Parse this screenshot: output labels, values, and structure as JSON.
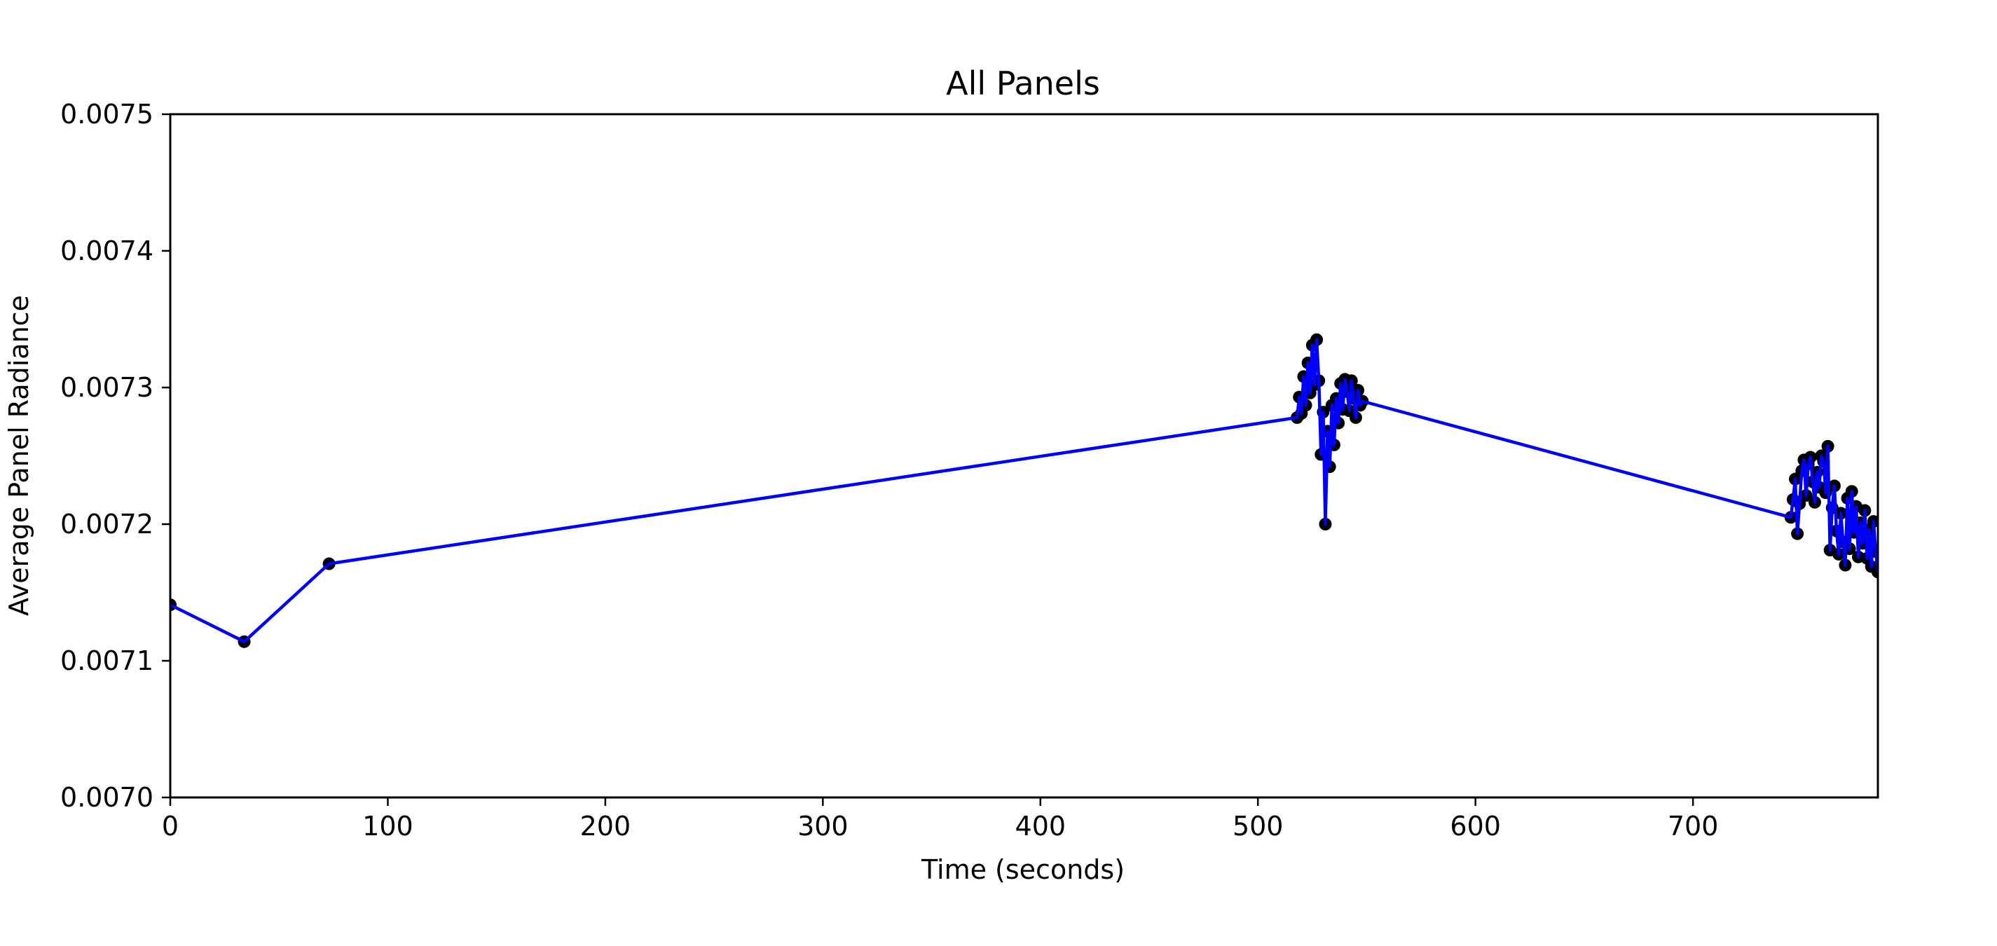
{
  "chart_data": {
    "type": "line",
    "title": "All Panels",
    "xlabel": "Time (seconds)",
    "ylabel": "Average Panel Radiance",
    "xlim": [
      0,
      785
    ],
    "ylim": [
      0.007,
      0.0075
    ],
    "xticks": [
      0,
      100,
      200,
      300,
      400,
      500,
      600,
      700
    ],
    "xtick_labels": [
      "0",
      "100",
      "200",
      "300",
      "400",
      "500",
      "600",
      "700"
    ],
    "yticks": [
      0.007,
      0.0071,
      0.0072,
      0.0073,
      0.0074,
      0.0075
    ],
    "ytick_labels": [
      "0.0070",
      "0.0071",
      "0.0072",
      "0.0073",
      "0.0074",
      "0.0075"
    ],
    "grid": false,
    "line_color": "#0000ff",
    "marker_color": "#000000",
    "series": [
      {
        "x": [
          0,
          34,
          73,
          518,
          519,
          520,
          521,
          522,
          523,
          524,
          525,
          526,
          527,
          528,
          529,
          530,
          531,
          532,
          533,
          534,
          535,
          536,
          537,
          538,
          539,
          540,
          541,
          542,
          543,
          544,
          545,
          546,
          547,
          548,
          745,
          746,
          747,
          748,
          749,
          750,
          751,
          752,
          753,
          754,
          755,
          756,
          757,
          758,
          759,
          760,
          761,
          762,
          763,
          764,
          765,
          766,
          767,
          768,
          769,
          770,
          771,
          772,
          773,
          774,
          775,
          776,
          777,
          778,
          779,
          780,
          781,
          782,
          783,
          784,
          785
        ],
        "y": [
          0.007141,
          0.007114,
          0.007171,
          0.007278,
          0.007293,
          0.007281,
          0.007308,
          0.007287,
          0.007318,
          0.007296,
          0.007331,
          0.007302,
          0.007335,
          0.007305,
          0.007251,
          0.007282,
          0.0072,
          0.007268,
          0.007242,
          0.007287,
          0.007258,
          0.007292,
          0.007274,
          0.007303,
          0.007284,
          0.007306,
          0.007297,
          0.007283,
          0.007305,
          0.007292,
          0.007278,
          0.007298,
          0.007287,
          0.00729,
          0.007205,
          0.007218,
          0.007233,
          0.007193,
          0.007215,
          0.007239,
          0.007247,
          0.007221,
          0.007244,
          0.007249,
          0.007231,
          0.007216,
          0.007238,
          0.007227,
          0.00725,
          0.007246,
          0.007223,
          0.007257,
          0.007181,
          0.007212,
          0.007228,
          0.007195,
          0.007178,
          0.007208,
          0.007187,
          0.00717,
          0.007219,
          0.007182,
          0.007224,
          0.007194,
          0.007213,
          0.007176,
          0.007201,
          0.007186,
          0.00721,
          0.007175,
          0.007196,
          0.007169,
          0.007202,
          0.00718,
          0.007165
        ]
      }
    ]
  }
}
